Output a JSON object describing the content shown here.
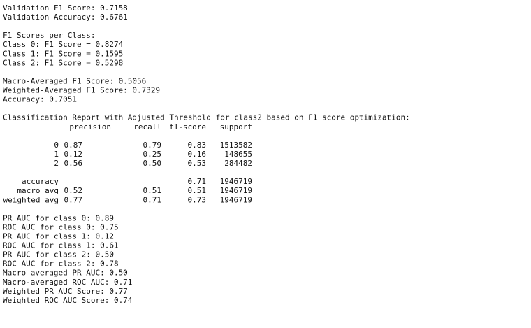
{
  "summary": [
    "Validation F1 Score: 0.7158",
    "Validation Accuracy: 0.6761"
  ],
  "per_class": {
    "title": "F1 Scores per Class:",
    "lines": [
      "Class 0: F1 Score = 0.8274",
      "Class 1: F1 Score = 0.1595",
      "Class 2: F1 Score = 0.5298"
    ]
  },
  "averages": [
    "Macro-Averaged F1 Score: 0.5056",
    "Weighted-Averaged F1 Score: 0.7329",
    "Accuracy: 0.7051"
  ],
  "report": {
    "title": "Classification Report with Adjusted Threshold for class2 based on F1 score optimization:",
    "columns": [
      "precision",
      "recall",
      "f1-score",
      "support"
    ],
    "classes": [
      {
        "label": "0",
        "cells": [
          "0.87",
          "0.79",
          "0.83",
          "1513582"
        ]
      },
      {
        "label": "1",
        "cells": [
          "0.12",
          "0.25",
          "0.16",
          "148655"
        ]
      },
      {
        "label": "2",
        "cells": [
          "0.56",
          "0.50",
          "0.53",
          "284482"
        ]
      }
    ],
    "accuracy": {
      "label": "accuracy",
      "f1_score": "0.71",
      "support": "1946719"
    },
    "avgs": [
      {
        "label": "macro avg",
        "cells": [
          "0.52",
          "0.51",
          "0.51",
          "1946719"
        ]
      },
      {
        "label": "weighted avg",
        "cells": [
          "0.77",
          "0.71",
          "0.73",
          "1946719"
        ]
      }
    ]
  },
  "auc": [
    "PR AUC for class 0: 0.89",
    "ROC AUC for class 0: 0.75",
    "PR AUC for class 1: 0.12",
    "ROC AUC for class 1: 0.61",
    "PR AUC for class 2: 0.50",
    "ROC AUC for class 2: 0.78",
    "Macro-averaged PR AUC: 0.50",
    "Macro-averaged ROC AUC: 0.71",
    "Weighted PR AUC Score: 0.77",
    "Weighted ROC AUC Score: 0.74"
  ]
}
